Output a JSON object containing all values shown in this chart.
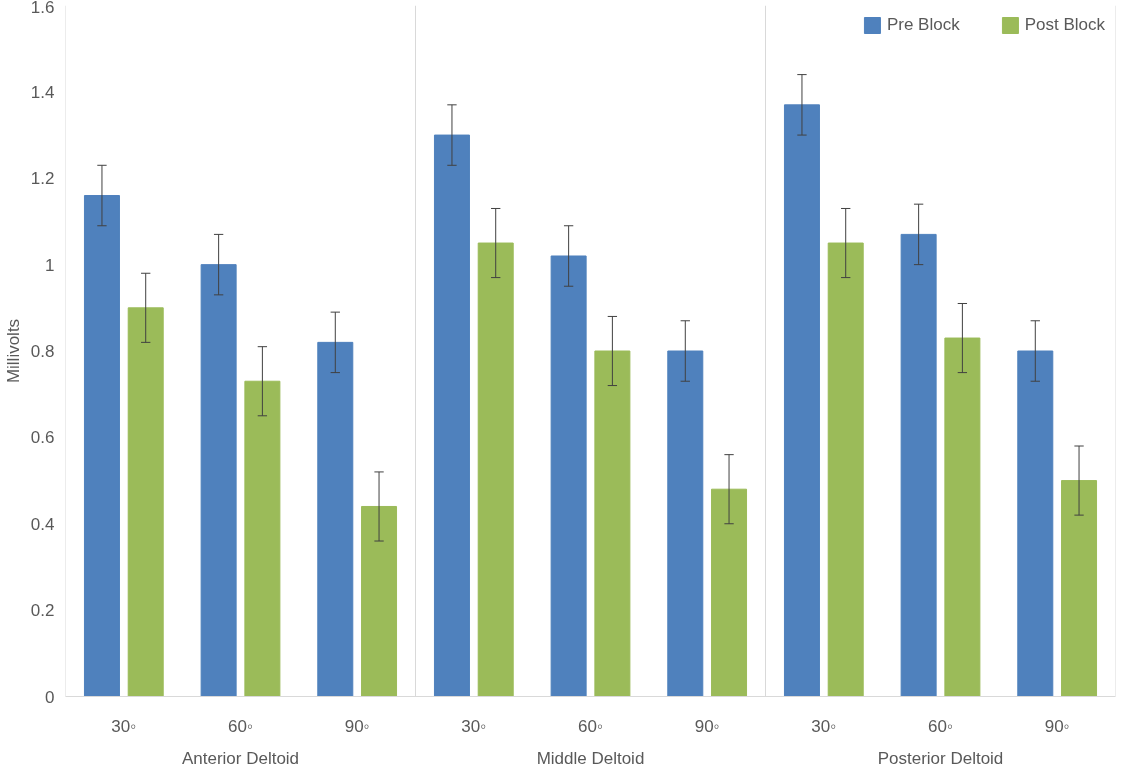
{
  "chart_data": {
    "type": "bar",
    "ylabel": "Millivolts",
    "categories": [
      "30◦",
      "60◦",
      "90◦",
      "30◦",
      "60◦",
      "90◦",
      "30◦",
      "60◦",
      "90◦"
    ],
    "series": [
      {
        "name": "Pre Block",
        "color": "#4f81bd",
        "values": [
          1.16,
          1.0,
          0.82,
          1.3,
          1.02,
          0.8,
          1.37,
          1.07,
          0.8
        ],
        "errors": [
          0.07,
          0.07,
          0.07,
          0.07,
          0.07,
          0.07,
          0.07,
          0.07,
          0.07
        ]
      },
      {
        "name": "Post Block",
        "color": "#9bbb59",
        "values": [
          0.9,
          0.73,
          0.44,
          1.05,
          0.8,
          0.48,
          1.05,
          0.83,
          0.5
        ],
        "errors": [
          0.08,
          0.08,
          0.08,
          0.08,
          0.08,
          0.08,
          0.08,
          0.08,
          0.08
        ]
      }
    ],
    "annotations": [
      "Anterior Deltoid",
      "Middle Deltoid",
      "Posterior Deltoid"
    ],
    "ylim": [
      0,
      1.6
    ],
    "yticks": [
      0,
      0.2,
      0.4,
      0.6,
      0.8,
      1,
      1.2,
      1.4,
      1.6
    ],
    "grid": false,
    "legend": "top right"
  }
}
